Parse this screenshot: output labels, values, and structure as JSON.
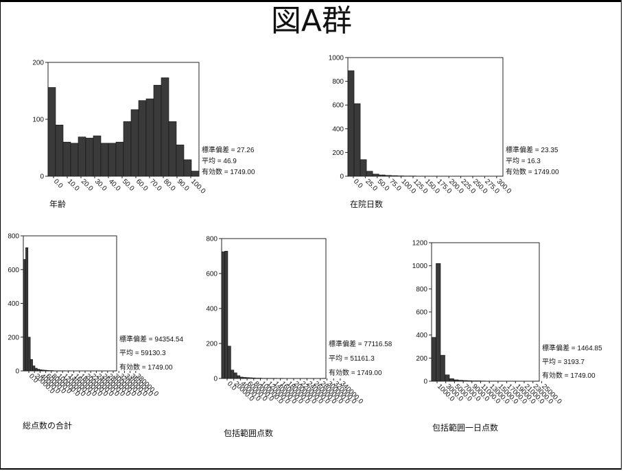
{
  "page": {
    "title": "図A群"
  },
  "chart_data": [
    {
      "type": "bar",
      "xlabel": "年齢",
      "ylim": [
        0,
        200
      ],
      "yticks": [
        "0",
        "100",
        "200"
      ],
      "xticks": [
        "0.0",
        "10.0",
        "20.0",
        "30.0",
        "40.0",
        "50.0",
        "60.0",
        "70.0",
        "80.0",
        "90.0",
        "100.0"
      ],
      "values": [
        156,
        90,
        60,
        58,
        69,
        67,
        71,
        58,
        58,
        60,
        96,
        117,
        133,
        136,
        160,
        173,
        96,
        55,
        29,
        9
      ],
      "stats": [
        "標準偏差 = 27.26",
        "平均 = 46.9",
        "有効数 = 1749.00"
      ]
    },
    {
      "type": "bar",
      "xlabel": "在院日数",
      "ylim": [
        0,
        1000
      ],
      "yticks": [
        "0",
        "200",
        "400",
        "600",
        "800",
        "1000"
      ],
      "xticks": [
        "0.0",
        "25.0",
        "50.0",
        "75.0",
        "100.0",
        "125.0",
        "150.0",
        "175.0",
        "200.0",
        "225.0",
        "250.0",
        "275.0",
        "300.0"
      ],
      "values": [
        890,
        612,
        140,
        42,
        18,
        11,
        7,
        5,
        3,
        2,
        2,
        1,
        1,
        1,
        1,
        1,
        0,
        1,
        0,
        0,
        0,
        0,
        0,
        0,
        1
      ],
      "stats": [
        "標準偏差 = 23.35",
        "平均 = 16.3",
        "有効数 = 1749.00"
      ]
    },
    {
      "type": "bar",
      "xlabel": "総点数の合計",
      "ylim": [
        0,
        800
      ],
      "yticks": [
        "0",
        "200",
        "400",
        "600",
        "800"
      ],
      "xticks": [
        "0.0",
        "20000.0",
        "40000.0",
        "60000.0",
        "80000.0",
        "100000.0",
        "120000.0",
        "140000.0",
        "160000.0",
        "180000.0",
        "200000.0",
        "220000.0",
        "240000.0",
        "260000.0",
        "280000.0",
        "300000.0",
        "320000.0",
        "340000.0",
        "360000.0",
        "380000.0"
      ],
      "values": [
        660,
        730,
        200,
        68,
        30,
        16,
        10,
        7,
        5,
        4,
        3,
        2,
        2,
        1,
        1,
        1,
        1,
        1,
        0,
        1,
        0,
        0,
        0,
        0,
        0,
        0,
        0,
        0,
        0,
        0,
        0,
        0,
        0,
        0,
        0,
        0,
        0,
        0,
        0,
        1
      ],
      "stats": [
        "標準偏差 = 94354.54",
        "平均 = 59130.3",
        "有効数 = 1749.00"
      ]
    },
    {
      "type": "bar",
      "xlabel": "包括範囲点数",
      "ylim": [
        0,
        800
      ],
      "yticks": [
        "0",
        "200",
        "400",
        "600",
        "800"
      ],
      "xticks": [
        "0.0",
        "20000.0",
        "40000.0",
        "60000.0",
        "80000.0",
        "100000.0",
        "120000.0",
        "140000.0",
        "160000.0",
        "180000.0",
        "200000.0",
        "220000.0",
        "240000.0",
        "260000.0",
        "280000.0",
        "300000.0",
        "320000.0",
        "340000.0"
      ],
      "values": [
        725,
        728,
        185,
        48,
        32,
        16,
        8,
        6,
        5,
        4,
        3,
        2,
        2,
        1,
        1,
        1,
        1,
        1,
        0,
        1,
        0,
        0,
        0,
        0,
        0,
        0,
        0,
        0,
        0,
        0,
        0,
        0,
        0,
        1
      ],
      "stats": [
        "標準偏差 = 77116.58",
        "平均 = 51161.3",
        "有効数 = 1749.00"
      ]
    },
    {
      "type": "bar",
      "xlabel": "包括範囲一日点数",
      "ylim": [
        0,
        1200
      ],
      "yticks": [
        "0",
        "200",
        "400",
        "600",
        "800",
        "1000",
        "1200"
      ],
      "xticks": [
        "1000.0",
        "3000.0",
        "5000.0",
        "7000.0",
        "9000.0",
        "11000.0",
        "13000.0",
        "15000.0",
        "17000.0",
        "19000.0",
        "21000.0",
        "23000.0",
        "25000.0"
      ],
      "values": [
        380,
        1020,
        225,
        55,
        22,
        12,
        8,
        6,
        4,
        3,
        3,
        2,
        1,
        1,
        1,
        1,
        0,
        0,
        0,
        0,
        0,
        0,
        0,
        1
      ],
      "stats": [
        "標準偏差 = 1464.85",
        "平均 = 3193.7",
        "有効数 = 1749.00"
      ]
    }
  ]
}
